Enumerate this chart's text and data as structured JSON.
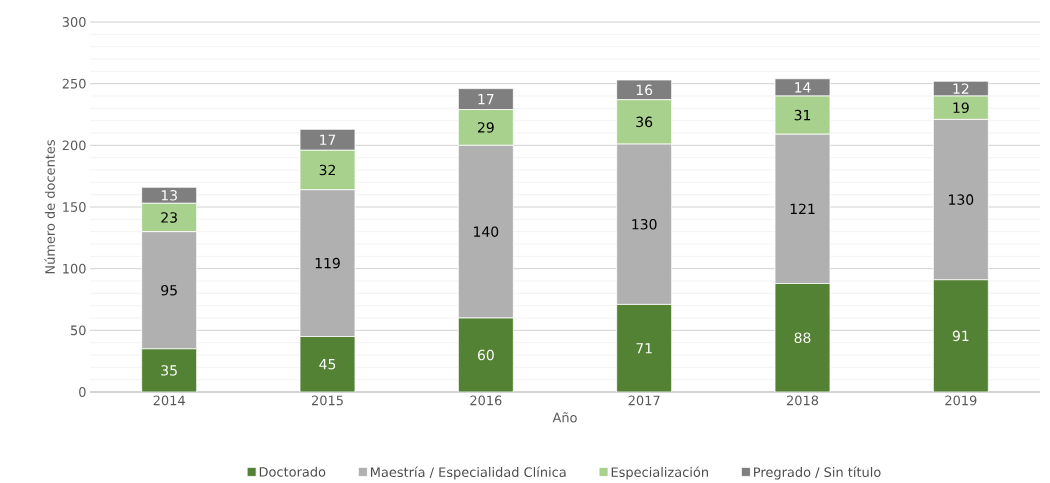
{
  "chart_data": {
    "type": "bar",
    "stacked": true,
    "xlabel": "Año",
    "ylabel": "Número de docentes",
    "categories": [
      "2014",
      "2015",
      "2016",
      "2017",
      "2018",
      "2019"
    ],
    "series": [
      {
        "name": "Doctorado",
        "color": "#548235",
        "values": [
          35,
          45,
          60,
          71,
          88,
          91
        ]
      },
      {
        "name": "Maestría / Especialidad Clínica",
        "color": "#b0b0b0",
        "values": [
          95,
          119,
          140,
          130,
          121,
          130
        ]
      },
      {
        "name": "Especialización",
        "color": "#a9d18e",
        "values": [
          23,
          32,
          29,
          36,
          31,
          19
        ]
      },
      {
        "name": "Pregrado / Sin título",
        "color": "#7f7f7f",
        "values": [
          13,
          17,
          17,
          16,
          14,
          12
        ]
      }
    ],
    "ylim": [
      0,
      300
    ],
    "yticks": [
      0,
      50,
      100,
      150,
      200,
      250,
      300
    ],
    "grid": "y",
    "legend": "bottom",
    "data_labels": true
  }
}
